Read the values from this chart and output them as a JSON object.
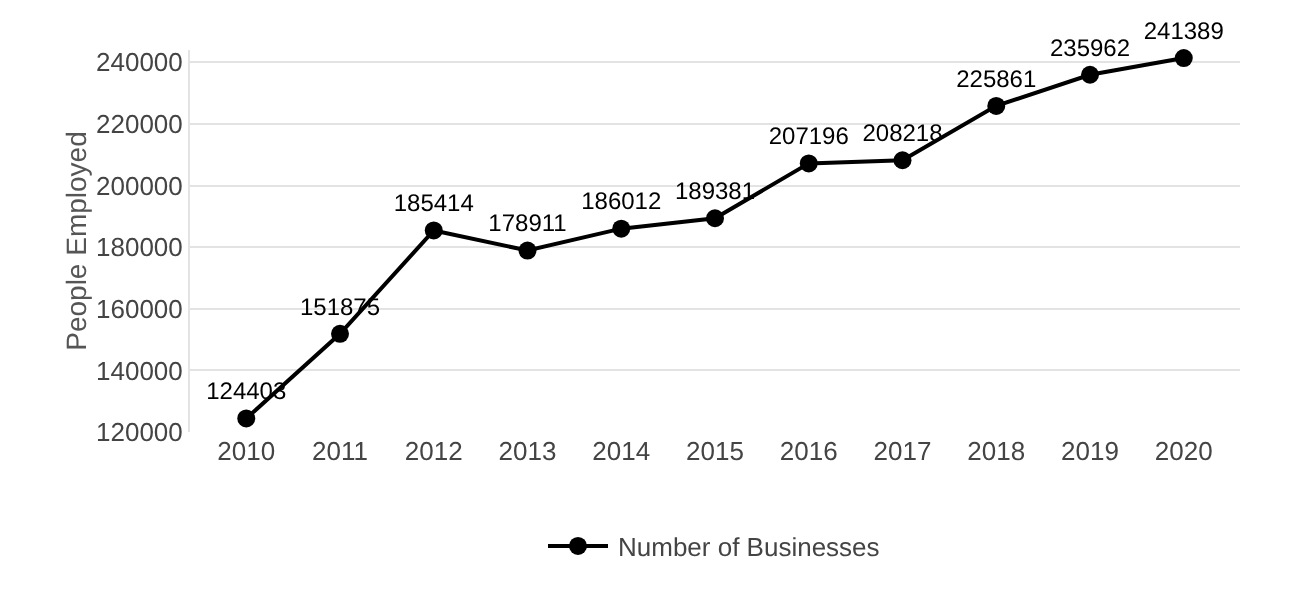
{
  "chart_data": {
    "type": "line",
    "ylabel": "People Employed",
    "categories": [
      "2010",
      "2011",
      "2012",
      "2013",
      "2014",
      "2015",
      "2016",
      "2017",
      "2018",
      "2019",
      "2020"
    ],
    "series": [
      {
        "name": "Number of Businesses",
        "color": "#000000",
        "values": [
          124403,
          151875,
          185414,
          178911,
          186012,
          189381,
          207196,
          208218,
          225861,
          235962,
          241389
        ]
      }
    ],
    "ylim": [
      120000,
      244000
    ],
    "yticks": [
      120000,
      140000,
      160000,
      180000,
      200000,
      220000,
      240000
    ],
    "grid": "y",
    "legend": "bottom",
    "marker": "circle",
    "line_style": "solid",
    "data_labels": true
  }
}
